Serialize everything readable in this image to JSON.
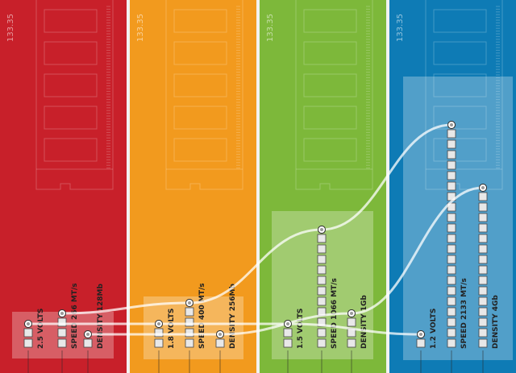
{
  "colors": {
    "red": "#c8202a",
    "orange": "#f29a1e",
    "green": "#7db83a",
    "blue": "#0e7bb5",
    "separator": "#f2f2f2"
  },
  "generations": [
    {
      "key": "ddr1",
      "color": "#c8202a",
      "dimension": "133.35",
      "voltage": {
        "label": "VOLTS",
        "value": "2.5",
        "blocks": 2
      },
      "speed": {
        "label": "SPEED",
        "value": "266",
        "unit": "MT/s",
        "blocks": 3
      },
      "density": {
        "label": "DENSITY",
        "value": "128Mb",
        "blocks": 1
      }
    },
    {
      "key": "ddr2",
      "color": "#f29a1e",
      "dimension": "133.35",
      "voltage": {
        "label": "VOLTS",
        "value": "1.8",
        "blocks": 2
      },
      "speed": {
        "label": "SPEED",
        "value": "400",
        "unit": "MT/s",
        "blocks": 4
      },
      "density": {
        "label": "DENSITY",
        "value": "256Mb",
        "blocks": 1
      }
    },
    {
      "key": "ddr3",
      "color": "#7db83a",
      "dimension": "133.35",
      "voltage": {
        "label": "VOLTS",
        "value": "1.5",
        "blocks": 2
      },
      "speed": {
        "label": "SPEED",
        "value": "1066",
        "unit": "MT/s",
        "blocks": 11
      },
      "density": {
        "label": "DENSITY",
        "value": "1Gb",
        "blocks": 3
      }
    },
    {
      "key": "ddr4",
      "color": "#0e7bb5",
      "dimension": "133.35",
      "voltage": {
        "label": "VOLTS",
        "value": "1.2",
        "blocks": 1
      },
      "speed": {
        "label": "SPEED",
        "value": "2133",
        "unit": "MT/s",
        "blocks": 21
      },
      "density": {
        "label": "DENSITY",
        "value": "4Gb",
        "blocks": 15
      }
    }
  ]
}
